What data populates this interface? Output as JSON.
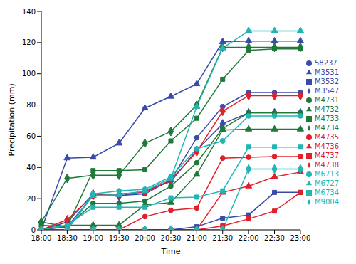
{
  "chart_data": {
    "type": "line",
    "x_label": "Time",
    "y_label": "Precipitation (mm)",
    "categories": [
      "18:00",
      "18:30",
      "19:00",
      "19:30",
      "20:00",
      "20:30",
      "21:00",
      "21:30",
      "22:00",
      "22:30",
      "23:00"
    ],
    "ylim": [
      0,
      140
    ],
    "yticks": [
      0,
      20,
      40,
      60,
      80,
      100,
      120,
      140
    ],
    "grid": false,
    "legend": "right",
    "series": [
      {
        "name": "58237",
        "color": "#3a4aa8",
        "marker": "circle",
        "values": [
          0,
          2,
          22,
          22,
          23,
          32,
          59,
          79,
          88,
          88,
          88
        ]
      },
      {
        "name": "M3531",
        "color": "#3a4aa8",
        "marker": "triangle",
        "values": [
          0,
          46,
          46.5,
          55.5,
          78,
          85.5,
          93.5,
          120.5,
          121,
          121,
          121
        ]
      },
      {
        "name": "M3532",
        "color": "#3a4aa8",
        "marker": "square",
        "values": [
          0,
          0,
          0,
          0,
          0,
          0,
          2,
          7.5,
          9.5,
          24,
          24
        ]
      },
      {
        "name": "M3547",
        "color": "#3a4aa8",
        "marker": "diamond",
        "values": [
          0,
          5,
          23,
          21.5,
          25,
          31,
          51,
          68,
          75,
          75,
          75
        ]
      },
      {
        "name": "M4731",
        "color": "#1f7a3a",
        "marker": "circle",
        "values": [
          5,
          2,
          17,
          17,
          18.5,
          28,
          43,
          65,
          75,
          75,
          75
        ]
      },
      {
        "name": "M4732",
        "color": "#1f7a3a",
        "marker": "triangle",
        "values": [
          0,
          3,
          3,
          3,
          16,
          17.5,
          35.5,
          64,
          64.5,
          64.5,
          64.5
        ]
      },
      {
        "name": "M4733",
        "color": "#1f7a3a",
        "marker": "square",
        "values": [
          3,
          2,
          38,
          38,
          38.5,
          57,
          71.5,
          96.5,
          115,
          116,
          116
        ]
      },
      {
        "name": "M4734",
        "color": "#1f7a3a",
        "marker": "diamond",
        "values": [
          5,
          33,
          35,
          35,
          55.5,
          63,
          80,
          117,
          117,
          117,
          117
        ]
      },
      {
        "name": "M4735",
        "color": "#e0202a",
        "marker": "circle",
        "values": [
          0,
          0,
          0,
          0,
          8.5,
          12.5,
          14,
          46,
          46.5,
          47,
          47
        ]
      },
      {
        "name": "M4736",
        "color": "#e0202a",
        "marker": "triangle",
        "values": [
          0,
          0,
          0,
          0,
          0,
          0,
          0,
          24,
          28,
          34,
          37
        ]
      },
      {
        "name": "M4737",
        "color": "#e0202a",
        "marker": "square",
        "values": [
          0,
          0,
          0,
          0,
          0,
          0,
          0,
          2.5,
          7,
          12,
          24
        ]
      },
      {
        "name": "M4738",
        "color": "#e0202a",
        "marker": "diamond",
        "values": [
          0,
          6.5,
          22,
          23,
          24,
          32,
          50,
          76,
          86,
          86,
          86
        ]
      },
      {
        "name": "M6713",
        "color": "#22b5b5",
        "marker": "circle",
        "values": [
          0,
          0,
          23,
          25,
          26,
          34,
          52,
          57,
          73,
          73,
          73
        ]
      },
      {
        "name": "M6727",
        "color": "#22b5b5",
        "marker": "triangle",
        "values": [
          0,
          0,
          22,
          22.5,
          25,
          33,
          79,
          116.5,
          127.5,
          127.5,
          127.5
        ]
      },
      {
        "name": "M6734",
        "color": "#22b5b5",
        "marker": "square",
        "values": [
          0,
          3,
          14.5,
          14.5,
          14.5,
          20.5,
          21,
          25,
          53,
          53,
          53
        ]
      },
      {
        "name": "M9004",
        "color": "#22b5b5",
        "marker": "diamond",
        "values": [
          0,
          0,
          0,
          0,
          0,
          0,
          0,
          0,
          39,
          39,
          39
        ]
      }
    ]
  }
}
